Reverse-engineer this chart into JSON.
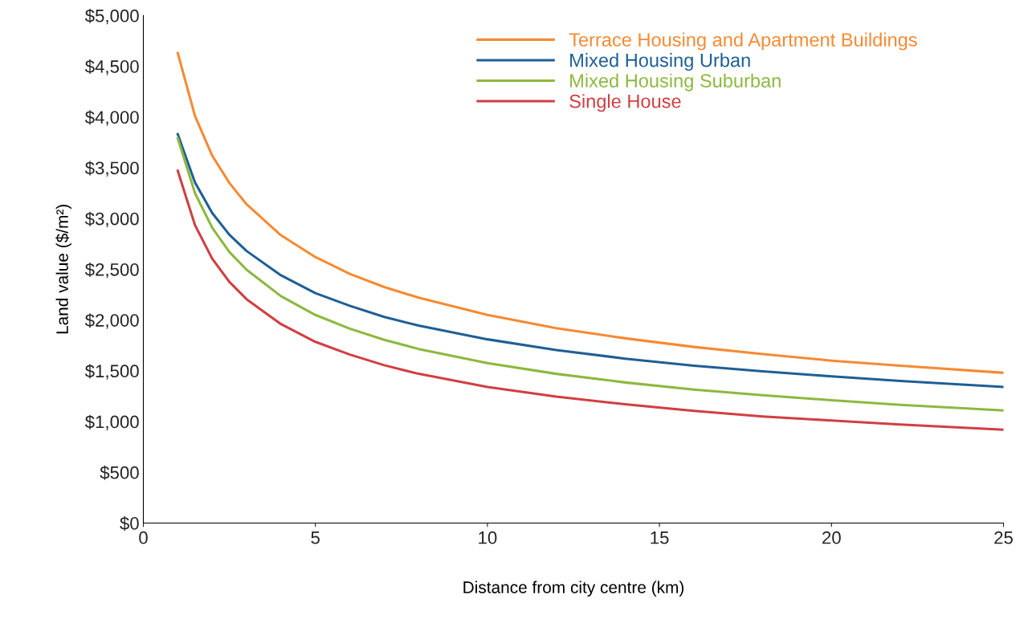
{
  "chart_data": {
    "type": "line",
    "xlabel": "Distance from city centre (km)",
    "ylabel": "Land value ($/m²)",
    "x": [
      1,
      1.5,
      2,
      2.5,
      3,
      4,
      5,
      6,
      7,
      8,
      10,
      12,
      14,
      16,
      18,
      20,
      22,
      25
    ],
    "series": [
      {
        "name": "Terrace Housing and Apartment Buildings",
        "color": "#f58a33",
        "values": [
          4630,
          4010,
          3620,
          3350,
          3140,
          2835,
          2620,
          2455,
          2325,
          2220,
          2050,
          1920,
          1820,
          1735,
          1665,
          1600,
          1550,
          1480
        ]
      },
      {
        "name": "Mixed Housing Urban",
        "color": "#1f5f95",
        "values": [
          3830,
          3355,
          3055,
          2840,
          2680,
          2440,
          2265,
          2140,
          2030,
          1945,
          1810,
          1705,
          1620,
          1550,
          1495,
          1445,
          1400,
          1340
        ]
      },
      {
        "name": "Mixed Housing Suburban",
        "color": "#8db83f",
        "values": [
          3790,
          3250,
          2910,
          2670,
          2495,
          2235,
          2050,
          1915,
          1805,
          1715,
          1575,
          1470,
          1385,
          1315,
          1260,
          1210,
          1165,
          1110
        ]
      },
      {
        "name": "Single House",
        "color": "#d13f41",
        "values": [
          3470,
          2935,
          2605,
          2375,
          2205,
          1960,
          1785,
          1660,
          1555,
          1470,
          1340,
          1245,
          1170,
          1105,
          1050,
          1010,
          970,
          920
        ]
      }
    ],
    "xlim": [
      0,
      25
    ],
    "xticks": [
      0,
      5,
      10,
      15,
      20,
      25
    ],
    "ylim": [
      0,
      5000
    ],
    "yticks": [
      {
        "value": 0,
        "label": "$0"
      },
      {
        "value": 500,
        "label": "$500"
      },
      {
        "value": 1000,
        "label": "$1,000"
      },
      {
        "value": 1500,
        "label": "$1,500"
      },
      {
        "value": 2000,
        "label": "$2,000"
      },
      {
        "value": 2500,
        "label": "$2,500"
      },
      {
        "value": 3000,
        "label": "$3,000"
      },
      {
        "value": 3500,
        "label": "$3,500"
      },
      {
        "value": 4000,
        "label": "$4,000"
      },
      {
        "value": 4500,
        "label": "$4,500"
      },
      {
        "value": 5000,
        "label": "$5,000"
      }
    ],
    "grid": false,
    "legend": "top right",
    "marker": "none",
    "line_style": "solid"
  }
}
